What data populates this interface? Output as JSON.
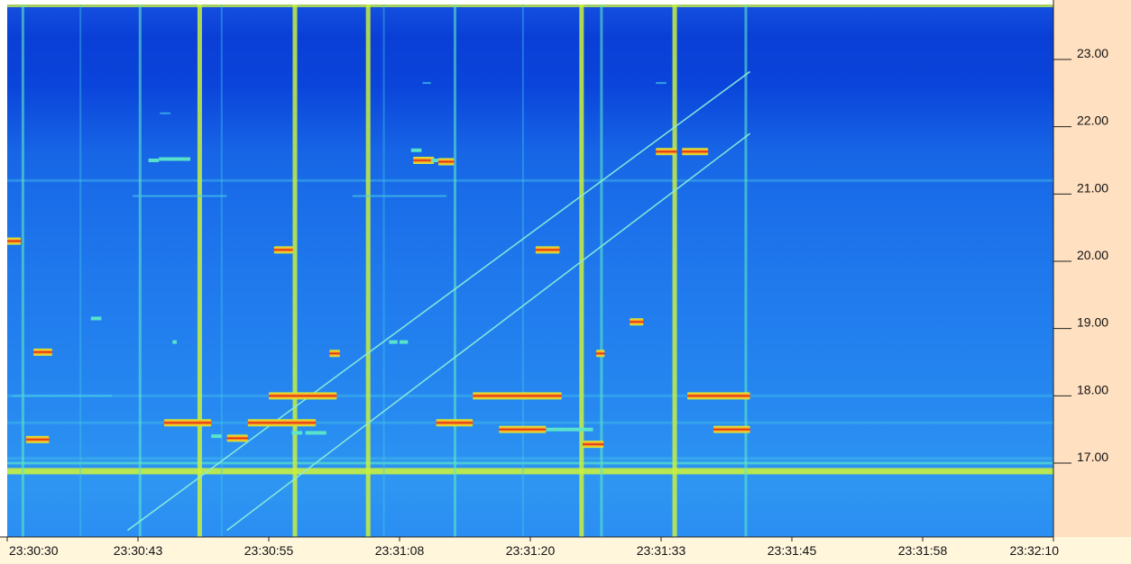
{
  "window": {
    "title": "",
    "colors": {
      "background_deep": "#0a3fd6",
      "background_mid": "#1e6fe8",
      "background_light": "#2f90f0",
      "signal_cyan": "#3fe0e8",
      "signal_yellow": "#c8f040",
      "signal_red": "#e22020",
      "axis_panel": "#ffe0c0",
      "bottom_panel": "#fff6dc"
    }
  },
  "chart_data": {
    "type": "heatmap",
    "title": "",
    "xlabel": "",
    "ylabel": "",
    "x_ticks": [
      "23:30:30",
      "23:30:43",
      "23:30:55",
      "23:31:08",
      "23:31:20",
      "23:31:33",
      "23:31:45",
      "23:31:58",
      "23:32:10"
    ],
    "y_ticks": [
      "23.00",
      "22.00",
      "21.00",
      "20.00",
      "19.00",
      "18.00",
      "17.00"
    ],
    "y_tick_values": [
      23.0,
      22.0,
      21.0,
      20.0,
      19.0,
      18.0,
      17.0
    ],
    "x_range_seconds": [
      0,
      100
    ],
    "y_range": [
      16.0,
      23.8
    ],
    "grid": false,
    "legend": "none",
    "horizontal_traces": [
      {
        "t0": 0,
        "t1": 1.3,
        "y": 20.3,
        "intensity": "high"
      },
      {
        "t0": 2.5,
        "t1": 4.3,
        "y": 18.65,
        "intensity": "high"
      },
      {
        "t0": 1.8,
        "t1": 4.0,
        "y": 17.35,
        "intensity": "high"
      },
      {
        "t0": 0.5,
        "t1": 10,
        "y": 18.0,
        "intensity": "low"
      },
      {
        "t0": 8,
        "t1": 9,
        "y": 19.15,
        "intensity": "medium"
      },
      {
        "t0": 12,
        "t1": 21,
        "y": 20.97,
        "intensity": "low"
      },
      {
        "t0": 13.5,
        "t1": 14.5,
        "y": 21.5,
        "intensity": "medium"
      },
      {
        "t0": 14.5,
        "t1": 17.5,
        "y": 21.52,
        "intensity": "medium"
      },
      {
        "t0": 14.6,
        "t1": 15.6,
        "y": 22.2,
        "intensity": "low"
      },
      {
        "t0": 15.8,
        "t1": 16.2,
        "y": 18.8,
        "intensity": "medium"
      },
      {
        "t0": 15,
        "t1": 19.5,
        "y": 17.6,
        "intensity": "high"
      },
      {
        "t0": 19.5,
        "t1": 20.5,
        "y": 17.4,
        "intensity": "medium"
      },
      {
        "t0": 21,
        "t1": 23,
        "y": 17.37,
        "intensity": "high"
      },
      {
        "t0": 23,
        "t1": 29.5,
        "y": 17.6,
        "intensity": "high"
      },
      {
        "t0": 25,
        "t1": 31.5,
        "y": 18.0,
        "intensity": "high"
      },
      {
        "t0": 25.5,
        "t1": 27.3,
        "y": 20.17,
        "intensity": "high"
      },
      {
        "t0": 27.2,
        "t1": 28.2,
        "y": 17.45,
        "intensity": "medium"
      },
      {
        "t0": 28.5,
        "t1": 30.5,
        "y": 17.45,
        "intensity": "medium"
      },
      {
        "t0": 30.8,
        "t1": 31.8,
        "y": 18.63,
        "intensity": "high"
      },
      {
        "t0": 33,
        "t1": 42,
        "y": 20.97,
        "intensity": "low"
      },
      {
        "t0": 36.5,
        "t1": 37.3,
        "y": 18.8,
        "intensity": "medium"
      },
      {
        "t0": 37.5,
        "t1": 38.3,
        "y": 18.8,
        "intensity": "medium"
      },
      {
        "t0": 38.6,
        "t1": 39.6,
        "y": 21.65,
        "intensity": "medium"
      },
      {
        "t0": 38.8,
        "t1": 40.8,
        "y": 21.5,
        "intensity": "high"
      },
      {
        "t0": 40.5,
        "t1": 41.5,
        "y": 21.5,
        "intensity": "medium"
      },
      {
        "t0": 41.2,
        "t1": 42.7,
        "y": 21.48,
        "intensity": "high"
      },
      {
        "t0": 39.7,
        "t1": 40.5,
        "y": 22.65,
        "intensity": "low"
      },
      {
        "t0": 41,
        "t1": 44.5,
        "y": 17.6,
        "intensity": "high"
      },
      {
        "t0": 44.5,
        "t1": 53,
        "y": 18.0,
        "intensity": "high"
      },
      {
        "t0": 47,
        "t1": 51.5,
        "y": 17.5,
        "intensity": "high"
      },
      {
        "t0": 50.5,
        "t1": 52.8,
        "y": 20.17,
        "intensity": "high"
      },
      {
        "t0": 51.5,
        "t1": 53.5,
        "y": 17.5,
        "intensity": "medium"
      },
      {
        "t0": 53.5,
        "t1": 55,
        "y": 17.5,
        "intensity": "medium"
      },
      {
        "t0": 55,
        "t1": 57,
        "y": 17.28,
        "intensity": "high"
      },
      {
        "t0": 55,
        "t1": 56,
        "y": 17.5,
        "intensity": "medium"
      },
      {
        "t0": 56.3,
        "t1": 57.1,
        "y": 18.63,
        "intensity": "high"
      },
      {
        "t0": 59.5,
        "t1": 60.8,
        "y": 19.1,
        "intensity": "high"
      },
      {
        "t0": 62,
        "t1": 64,
        "y": 21.63,
        "intensity": "high"
      },
      {
        "t0": 64.5,
        "t1": 67,
        "y": 21.63,
        "intensity": "high"
      },
      {
        "t0": 65,
        "t1": 71,
        "y": 18.0,
        "intensity": "high"
      },
      {
        "t0": 67.5,
        "t1": 71,
        "y": 17.5,
        "intensity": "high"
      },
      {
        "t0": 62,
        "t1": 63,
        "y": 22.65,
        "intensity": "low"
      }
    ],
    "persistent_bands": [
      {
        "y": 16.88,
        "intensity": "high"
      },
      {
        "y": 17.0,
        "intensity": "medium"
      },
      {
        "y": 17.07,
        "intensity": "low"
      },
      {
        "y": 21.2,
        "intensity": "low"
      },
      {
        "y": 17.6,
        "intensity": "low"
      },
      {
        "y": 18.0,
        "intensity": "low"
      }
    ],
    "vertical_lines": [
      {
        "t": 1.5,
        "intensity": "medium"
      },
      {
        "t": 7.0,
        "intensity": "low"
      },
      {
        "t": 12.7,
        "intensity": "medium"
      },
      {
        "t": 18.4,
        "intensity": "high"
      },
      {
        "t": 20.5,
        "intensity": "low"
      },
      {
        "t": 27.5,
        "intensity": "high"
      },
      {
        "t": 34.5,
        "intensity": "high"
      },
      {
        "t": 36.0,
        "intensity": "low"
      },
      {
        "t": 42.8,
        "intensity": "medium"
      },
      {
        "t": 49.3,
        "intensity": "low"
      },
      {
        "t": 54.9,
        "intensity": "high"
      },
      {
        "t": 56.8,
        "intensity": "medium"
      },
      {
        "t": 63.8,
        "intensity": "high"
      },
      {
        "t": 70.6,
        "intensity": "medium"
      }
    ],
    "diagonal_traces": [
      {
        "t0": 11.5,
        "y0": 16.0,
        "t1": 71,
        "y1": 22.82
      },
      {
        "t0": 21.0,
        "y0": 16.0,
        "t1": 71,
        "y1": 21.9
      }
    ]
  }
}
